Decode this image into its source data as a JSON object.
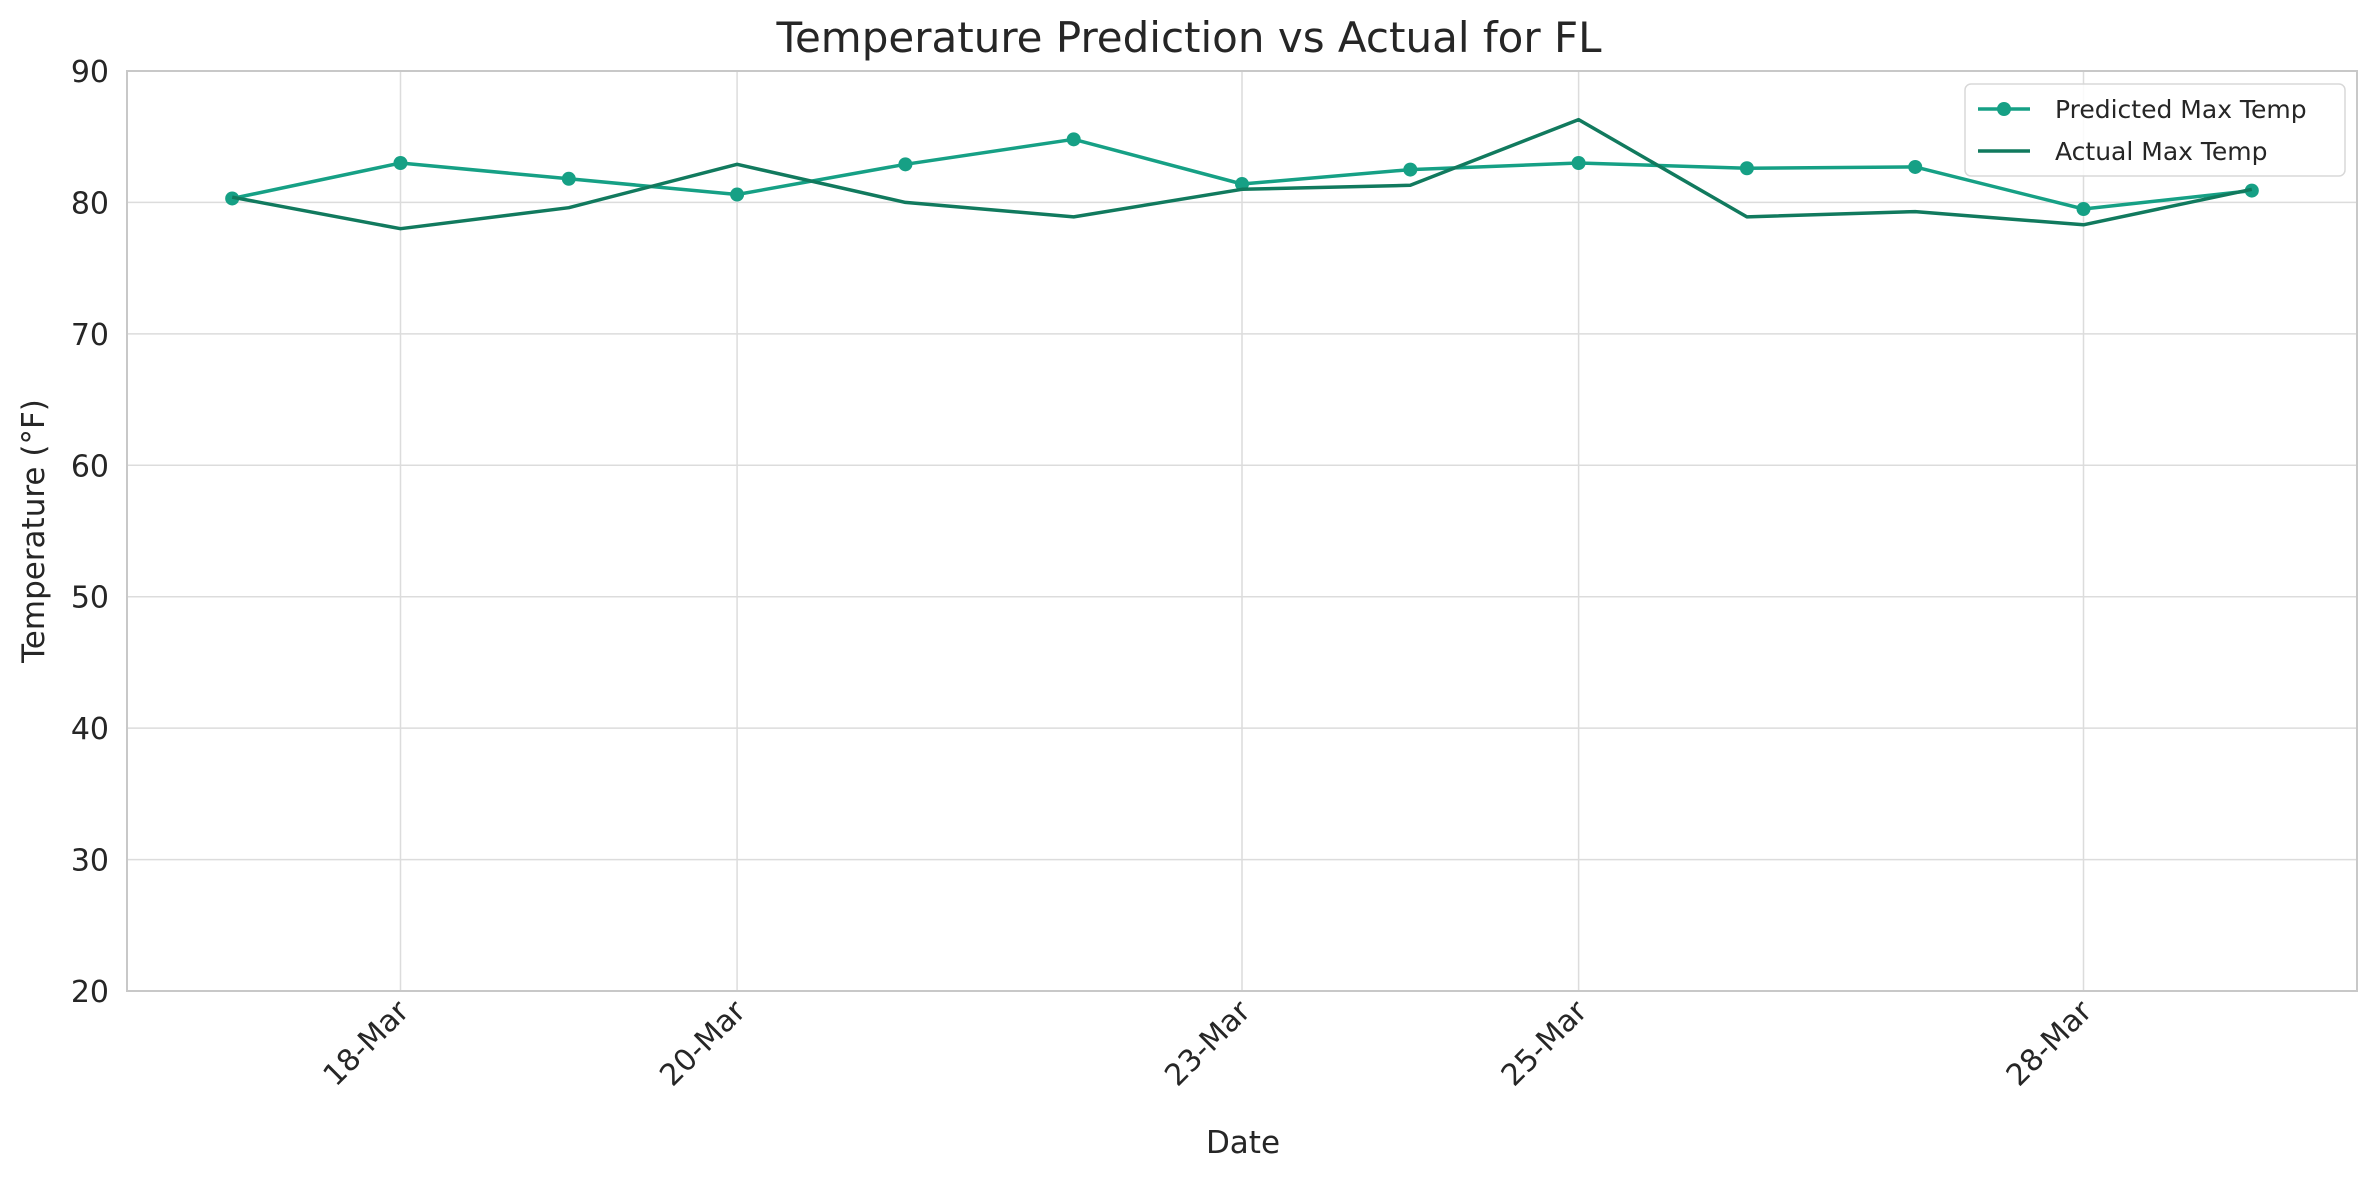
{
  "chart_data": {
    "type": "line",
    "title": "Temperature Prediction vs Actual for FL",
    "xlabel": "Date",
    "ylabel": "Temperature (°F)",
    "x": [
      "2024-03-17",
      "2024-03-18",
      "2024-03-19",
      "2024-03-20",
      "2024-03-21",
      "2024-03-22",
      "2024-03-23",
      "2024-03-24",
      "2024-03-25",
      "2024-03-26",
      "2024-03-27",
      "2024-03-28",
      "2024-03-29"
    ],
    "xlim": [
      "2024-03-16T09:00",
      "2024-03-29T15:00"
    ],
    "xticks": [
      "2024-03-18",
      "2024-03-20",
      "2024-03-23",
      "2024-03-25",
      "2024-03-28"
    ],
    "xtick_labels": [
      "18-Mar",
      "20-Mar",
      "23-Mar",
      "25-Mar",
      "28-Mar"
    ],
    "ylim": [
      20,
      90
    ],
    "yticks": [
      20,
      30,
      40,
      50,
      60,
      70,
      80,
      90
    ],
    "grid": true,
    "legend_position": "top-right",
    "series": [
      {
        "name": "Predicted Max Temp",
        "color": "#16a085",
        "marker": "circle",
        "values": [
          80.3,
          83.0,
          81.8,
          80.6,
          82.9,
          84.8,
          81.4,
          82.5,
          83.0,
          82.6,
          82.7,
          79.5,
          80.9
        ]
      },
      {
        "name": "Actual Max Temp",
        "color": "#117a5e",
        "marker": "none",
        "values": [
          80.4,
          78.0,
          79.6,
          82.9,
          80.0,
          78.9,
          81.0,
          81.3,
          86.3,
          78.9,
          79.3,
          78.3,
          81.0
        ]
      }
    ]
  }
}
